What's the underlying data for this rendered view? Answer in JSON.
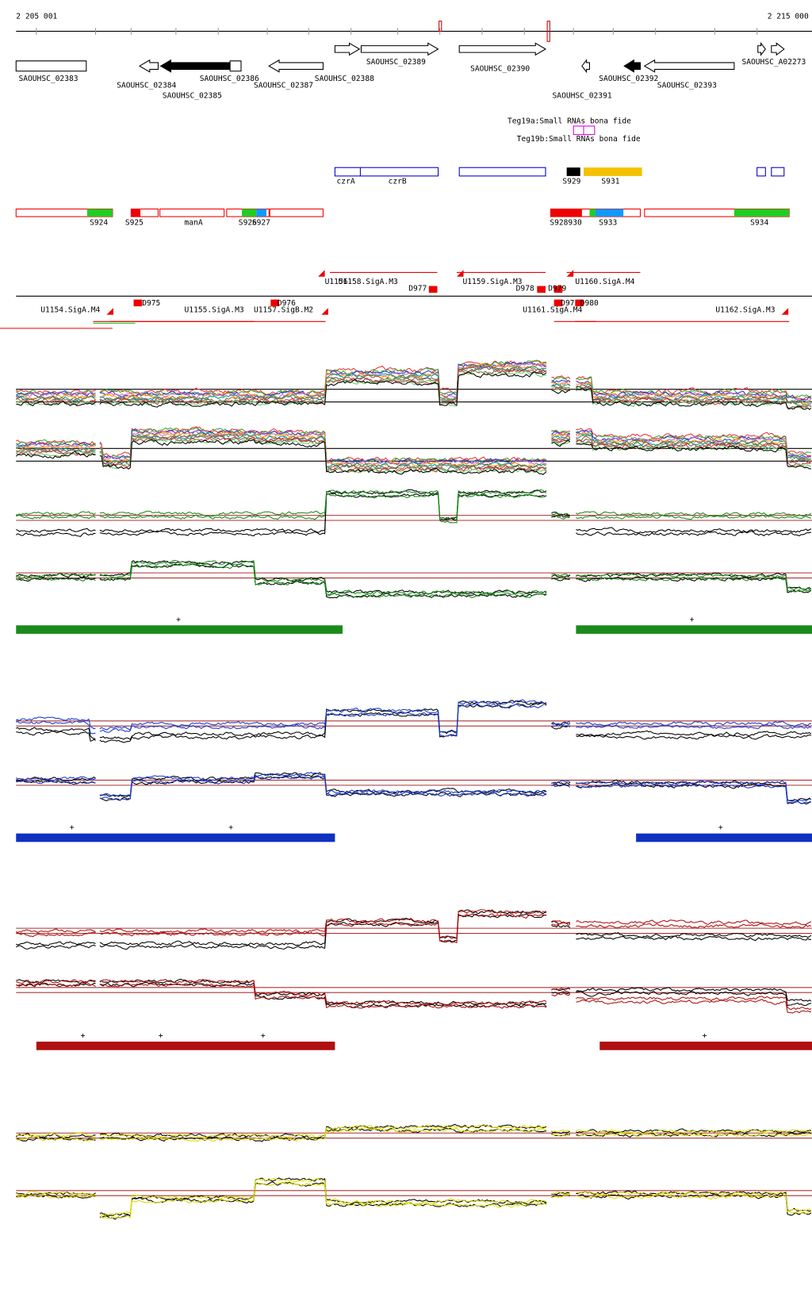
{
  "axis": {
    "start": "2 205 001",
    "end": "2 215 000"
  },
  "genes": [
    "SAOUHSC_02383",
    "SAOUHSC_02384",
    "SAOUHSC_02385",
    "SAOUHSC_02386",
    "SAOUHSC_02387",
    "SAOUHSC_02388",
    "SAOUHSC_02389",
    "SAOUHSC_02390",
    "SAOUHSC_02391",
    "SAOUHSC_02392",
    "SAOUHSC_02393",
    "SAOUHSC_A02273"
  ],
  "small_rnas": [
    "Teg19a:Small RNAs bona fide",
    "Teg19b:Small RNAs bona fide"
  ],
  "features": [
    "czrA",
    "czrB",
    "S929",
    "S931"
  ],
  "segments": [
    "S924",
    "S925",
    "manA",
    "S926",
    "S927",
    "S928930",
    "S933",
    "S934"
  ],
  "transcripts": [
    "U1156",
    "U1158.SigA.M3",
    "D977",
    "U1159.SigA.M3",
    "D978",
    "D979",
    "U1160.SigA.M4",
    "U1154.SigA.M4",
    "D975",
    "U1155.SigA.M3",
    "U1157.SigB.M2",
    "D976",
    "U1161.SigA.M4",
    "D97",
    "D980",
    "U1162.SigA.M3"
  ],
  "markers": {
    "green": [
      "+",
      "+"
    ],
    "blue": [
      "+",
      "+",
      "+"
    ],
    "red": [
      "+",
      "+",
      "+",
      "+"
    ]
  }
}
